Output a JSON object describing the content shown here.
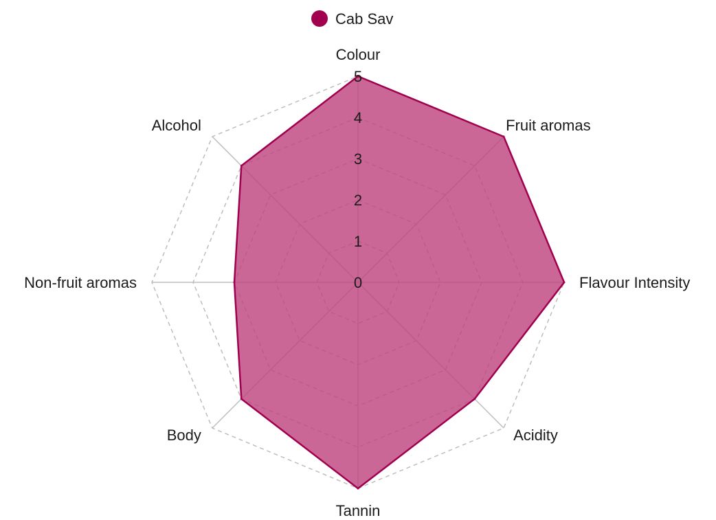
{
  "chart_data": {
    "type": "radar",
    "axes": [
      "Colour",
      "Fruit aromas",
      "Flavour Intensity",
      "Acidity",
      "Tannin",
      "Body",
      "Non-fruit aromas",
      "Alcohol"
    ],
    "series": [
      {
        "name": "Cab Sav",
        "values": [
          5,
          5,
          5,
          4,
          5,
          4,
          3,
          4
        ],
        "color": "#a0004e",
        "fill_color": "#c0457f"
      }
    ],
    "range": [
      0,
      5
    ],
    "ticks": [
      "0",
      "1",
      "2",
      "3",
      "4",
      "5"
    ],
    "legend_position": "top-center",
    "grid": "dashed polygons"
  }
}
